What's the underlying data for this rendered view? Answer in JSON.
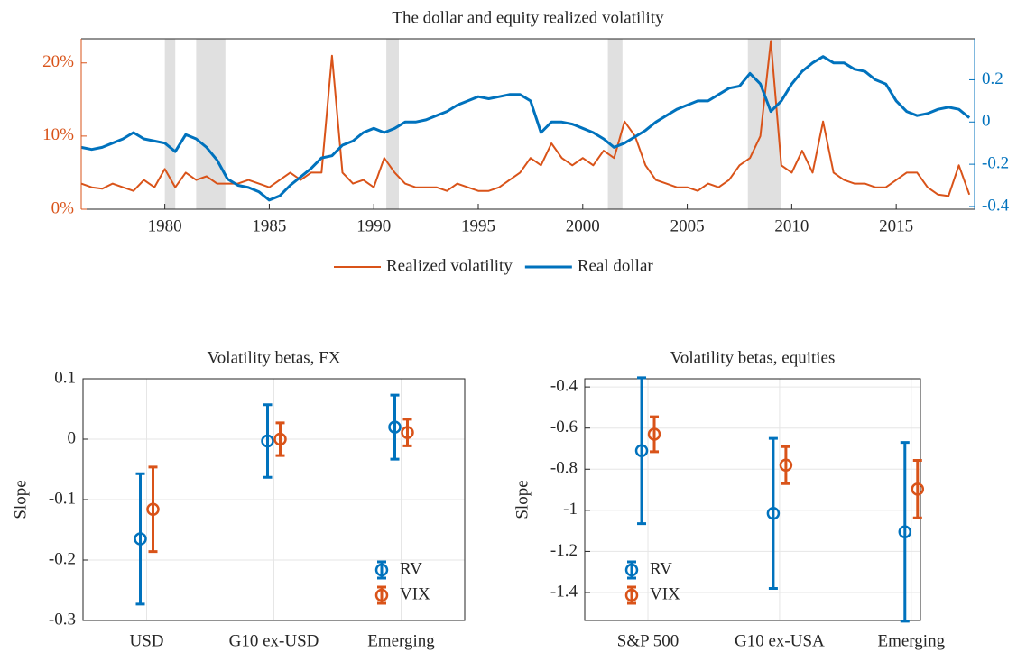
{
  "chart_data": [
    {
      "type": "line",
      "title": "The dollar and equity realized volatility",
      "x": [
        1976,
        1976.5,
        1977,
        1977.5,
        1978,
        1978.5,
        1979,
        1979.5,
        1980,
        1980.5,
        1981,
        1981.5,
        1982,
        1982.5,
        1983,
        1983.5,
        1984,
        1984.5,
        1985,
        1985.5,
        1986,
        1986.5,
        1987,
        1987.5,
        1988,
        1988.5,
        1989,
        1989.5,
        1990,
        1990.5,
        1991,
        1991.5,
        1992,
        1992.5,
        1993,
        1993.5,
        1994,
        1994.5,
        1995,
        1995.5,
        1996,
        1996.5,
        1997,
        1997.5,
        1998,
        1998.5,
        1999,
        1999.5,
        2000,
        2000.5,
        2001,
        2001.5,
        2002,
        2002.5,
        2003,
        2003.5,
        2004,
        2004.5,
        2005,
        2005.5,
        2006,
        2006.5,
        2007,
        2007.5,
        2008,
        2008.5,
        2009,
        2009.5,
        2010,
        2010.5,
        2011,
        2011.5,
        2012,
        2012.5,
        2013,
        2013.5,
        2014,
        2014.5,
        2015,
        2015.5,
        2016,
        2016.5,
        2017,
        2017.5,
        2018,
        2018.5
      ],
      "xlim": [
        1976,
        2018.75
      ],
      "xticks": [
        1980,
        1985,
        1990,
        1995,
        2000,
        2005,
        2010,
        2015
      ],
      "ylim": [
        0,
        23.3
      ],
      "yticks": [
        {
          "value": 0,
          "label": "0%"
        },
        {
          "value": 10,
          "label": "10%"
        },
        {
          "value": 20,
          "label": "20%"
        }
      ],
      "y2lim": [
        -0.413,
        0.394
      ],
      "y2ticks": [
        -0.4,
        -0.2,
        0,
        0.2
      ],
      "shaded_regions": [
        [
          1980,
          1980.5
        ],
        [
          1981.5,
          1982.9
        ],
        [
          1990.6,
          1991.2
        ],
        [
          2001.2,
          2001.9
        ],
        [
          2007.9,
          2009.5
        ]
      ],
      "legend": "below",
      "grid": false,
      "series": [
        {
          "name": "Realized volatility",
          "color": "#D95319",
          "axis": "y",
          "values": [
            3.5,
            3,
            2.8,
            3.5,
            3,
            2.5,
            4,
            3,
            5.5,
            3,
            5,
            4,
            4.5,
            3.5,
            3.5,
            3.5,
            4,
            3.5,
            3,
            4,
            5,
            4,
            5,
            5,
            21,
            5,
            3.5,
            4,
            3,
            7,
            5,
            3.5,
            3,
            3,
            3,
            2.5,
            3.5,
            3,
            2.5,
            2.5,
            3,
            4,
            5,
            7,
            6,
            9,
            7,
            6,
            7,
            6,
            8,
            7,
            12,
            10,
            6,
            4,
            3.5,
            3,
            3,
            2.5,
            3.5,
            3,
            4,
            6,
            7,
            10,
            23,
            6,
            5,
            8,
            5,
            12,
            5,
            4,
            3.5,
            3.5,
            3,
            3,
            4,
            5,
            5,
            3,
            2,
            1.8,
            6,
            2
          ]
        },
        {
          "name": "Real dollar",
          "color": "#0072BD",
          "axis": "y2",
          "values": [
            -0.12,
            -0.13,
            -0.12,
            -0.1,
            -0.08,
            -0.05,
            -0.08,
            -0.09,
            -0.1,
            -0.14,
            -0.06,
            -0.08,
            -0.12,
            -0.18,
            -0.27,
            -0.3,
            -0.31,
            -0.33,
            -0.37,
            -0.35,
            -0.3,
            -0.26,
            -0.22,
            -0.17,
            -0.16,
            -0.11,
            -0.09,
            -0.05,
            -0.03,
            -0.05,
            -0.03,
            0,
            0,
            0.01,
            0.03,
            0.05,
            0.08,
            0.1,
            0.12,
            0.11,
            0.12,
            0.13,
            0.13,
            0.1,
            -0.05,
            0,
            0,
            -0.01,
            -0.03,
            -0.05,
            -0.08,
            -0.12,
            -0.1,
            -0.07,
            -0.04,
            0,
            0.03,
            0.06,
            0.08,
            0.1,
            0.1,
            0.13,
            0.16,
            0.17,
            0.23,
            0.18,
            0.05,
            0.1,
            0.18,
            0.24,
            0.28,
            0.31,
            0.28,
            0.28,
            0.25,
            0.24,
            0.2,
            0.18,
            0.1,
            0.05,
            0.03,
            0.04,
            0.06,
            0.07,
            0.06,
            0.02
          ]
        }
      ]
    },
    {
      "type": "errorbar",
      "title": "Volatility betas, FX",
      "y_label": "Slope",
      "categories": [
        "USD",
        "G10 ex-USD",
        "Emerging"
      ],
      "xlim": [
        0.5,
        3.5
      ],
      "ylim": [
        -0.3,
        0.1
      ],
      "yticks": [
        -0.3,
        -0.2,
        -0.1,
        0,
        0.1
      ],
      "grid": true,
      "legend": "southeast",
      "series": [
        {
          "name": "RV",
          "color": "#0072BD",
          "values": [
            -0.165,
            -0.003,
            0.02
          ],
          "errors": [
            0.108,
            0.06,
            0.053
          ]
        },
        {
          "name": "VIX",
          "color": "#D95319",
          "values": [
            -0.116,
            0,
            0.011
          ],
          "errors": [
            0.07,
            0.027,
            0.022
          ]
        }
      ]
    },
    {
      "type": "errorbar",
      "title": "Volatility betas, equities",
      "y_label": "Slope",
      "categories": [
        "S&P 500",
        "G10 ex-USA",
        "Emerging"
      ],
      "xlim": [
        0.52,
        3.07
      ],
      "ylim": [
        -1.536,
        -0.36
      ],
      "yticks": [
        -1.4,
        -1.2,
        -1,
        -0.8,
        -0.6,
        -0.4
      ],
      "grid": true,
      "legend": "southwest",
      "series": [
        {
          "name": "RV",
          "color": "#0072BD",
          "values": [
            -0.71,
            -1.015,
            -1.105
          ],
          "errors": [
            0.355,
            0.365,
            0.435
          ]
        },
        {
          "name": "VIX",
          "color": "#D95319",
          "values": [
            -0.63,
            -0.78,
            -0.897
          ],
          "errors": [
            0.085,
            0.09,
            0.14
          ]
        }
      ]
    }
  ]
}
